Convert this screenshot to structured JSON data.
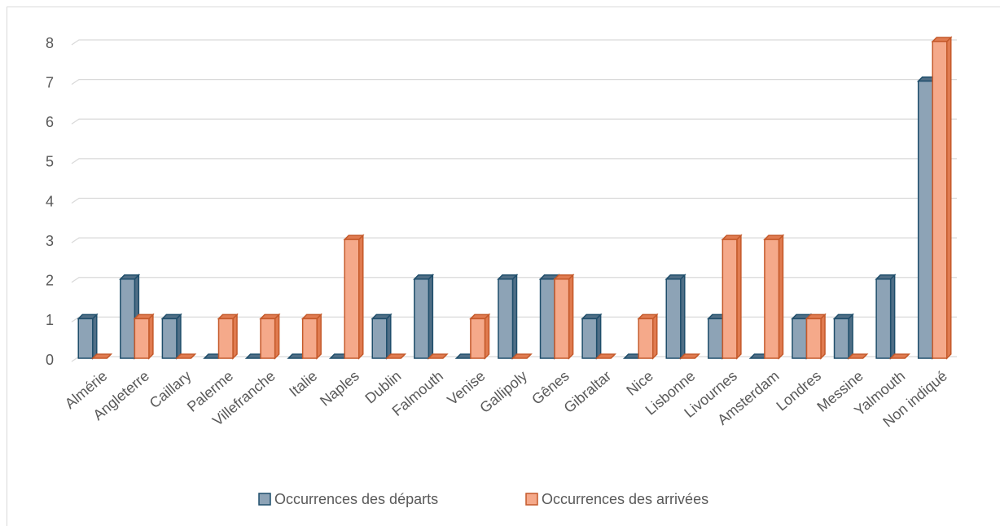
{
  "chart_data": {
    "type": "bar",
    "categories": [
      "Almérie",
      "Angleterre",
      "Caillary",
      "Palerme",
      "Villefranche",
      "Italie",
      "Naples",
      "Dublin",
      "Falmouth",
      "Venise",
      "Gallipoly",
      "Gênes",
      "Gibraltar",
      "Nice",
      "Lisbonne",
      "Livournes",
      "Amsterdam",
      "Londres",
      "Messine",
      "Yalmouth",
      "Non indiqué"
    ],
    "series": [
      {
        "name": "Occurrences des départs",
        "color": "#8da3b6",
        "values": [
          1,
          2,
          1,
          0,
          0,
          0,
          0,
          1,
          2,
          0,
          2,
          2,
          1,
          0,
          2,
          1,
          0,
          1,
          1,
          2,
          7
        ]
      },
      {
        "name": "Occurrences des arrivées",
        "color": "#f5a98a",
        "values": [
          0,
          1,
          0,
          1,
          1,
          1,
          3,
          0,
          0,
          1,
          0,
          2,
          0,
          1,
          0,
          3,
          3,
          1,
          0,
          0,
          8
        ]
      }
    ],
    "ylim": [
      0,
      8
    ],
    "yticks": [
      0,
      1,
      2,
      3,
      4,
      5,
      6,
      7,
      8
    ],
    "grid": true,
    "legend": "bottom"
  }
}
